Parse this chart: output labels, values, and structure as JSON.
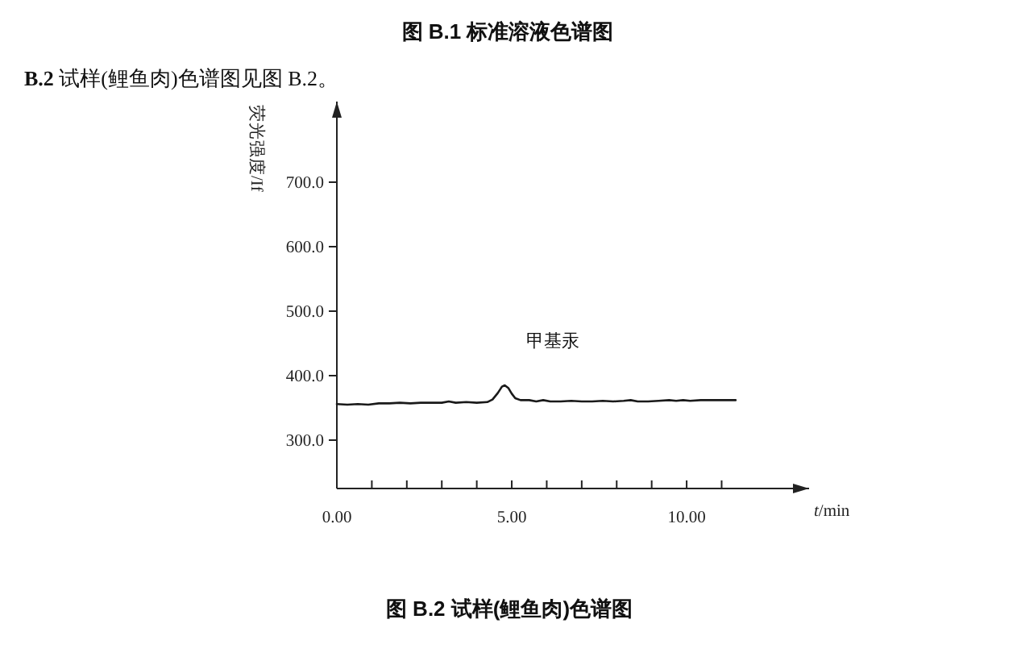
{
  "chart_data": {
    "type": "line",
    "title": "图 B.2  试样(鲤鱼肉)色谱图",
    "annotations": [
      "图 B.1  标准溶液色谱图",
      "B.2  试样(鲤鱼肉)色谱图见图 B.2。",
      {
        "text": "甲基汞",
        "x": 4.8,
        "y": 385
      }
    ],
    "xlabel": "t/min",
    "ylabel": "荧光强度/If",
    "x": [
      0,
      0.3,
      0.6,
      0.9,
      1.2,
      1.5,
      1.8,
      2.1,
      2.4,
      2.7,
      3.0,
      3.2,
      3.4,
      3.7,
      4.0,
      4.3,
      4.45,
      4.6,
      4.72,
      4.8,
      4.9,
      5.0,
      5.1,
      5.25,
      5.5,
      5.7,
      5.9,
      6.1,
      6.4,
      6.7,
      7.0,
      7.3,
      7.6,
      7.9,
      8.2,
      8.4,
      8.6,
      8.9,
      9.2,
      9.5,
      9.7,
      9.9,
      10.1,
      10.4,
      10.7,
      11.0,
      11.4
    ],
    "series": [
      {
        "color": "#1a1a1a",
        "values": [
          356,
          355,
          356,
          355,
          357,
          357,
          358,
          357,
          358,
          358,
          358,
          360,
          358,
          359,
          358,
          359,
          363,
          373,
          383,
          385,
          381,
          372,
          365,
          362,
          362,
          360,
          362,
          360,
          360,
          361,
          360,
          360,
          361,
          360,
          361,
          362,
          360,
          360,
          361,
          362,
          361,
          362,
          361,
          362,
          362,
          362,
          362
        ]
      }
    ],
    "xlim": [
      0,
      13.5
    ],
    "ylim": [
      225,
      825
    ],
    "xticks": [
      {
        "value": 0,
        "label": "0.00"
      },
      {
        "value": 1,
        "label": null
      },
      {
        "value": 2,
        "label": null
      },
      {
        "value": 3,
        "label": null
      },
      {
        "value": 4,
        "label": null
      },
      {
        "value": 5,
        "label": "5.00"
      },
      {
        "value": 6,
        "label": null
      },
      {
        "value": 7,
        "label": null
      },
      {
        "value": 8,
        "label": null
      },
      {
        "value": 9,
        "label": null
      },
      {
        "value": 10,
        "label": "10.00"
      },
      {
        "value": 11,
        "label": null
      }
    ],
    "yticks": [
      {
        "value": 300,
        "label": "300.0"
      },
      {
        "value": 400,
        "label": "400.0"
      },
      {
        "value": 500,
        "label": "500.0"
      },
      {
        "value": 600,
        "label": "600.0"
      },
      {
        "value": 700,
        "label": "700.0"
      }
    ],
    "line_style": "solid"
  }
}
